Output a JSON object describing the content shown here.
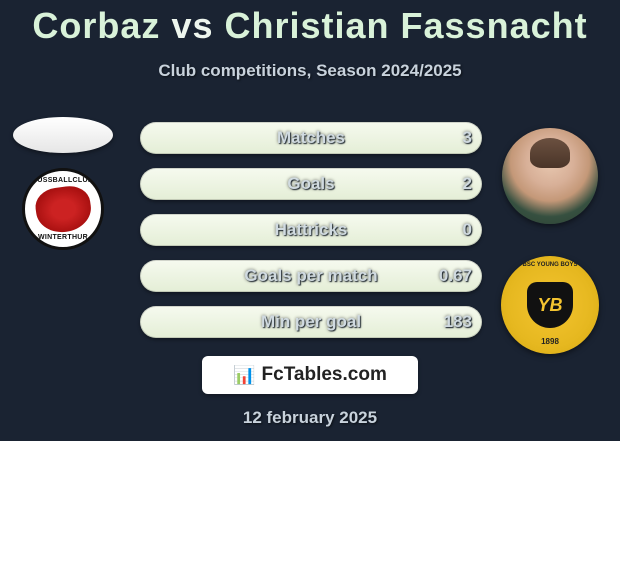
{
  "title": {
    "player_a": "Corbaz",
    "vs": "vs",
    "player_b": "Christian Fassnacht",
    "color_a": "#d9f2d9",
    "color_b": "#d9f2d9",
    "color_vs": "#b8e4b8",
    "fontsize": 36
  },
  "subtitle": "Club competitions, Season 2024/2025",
  "left_team_name": "Winterthur",
  "right_team_name": "Young Boys",
  "stats": {
    "rows": [
      {
        "label": "Matches",
        "value": "3"
      },
      {
        "label": "Goals",
        "value": "2"
      },
      {
        "label": "Hattricks",
        "value": "0"
      },
      {
        "label": "Goals per match",
        "value": "0.67"
      },
      {
        "label": "Min per goal",
        "value": "183"
      }
    ],
    "pill_bg_top": "#f6faef",
    "pill_bg_bottom": "#e4eed6",
    "pill_height": 32,
    "label_fontsize": 17,
    "label_color": "#d0dae0",
    "value_fontsize": 17,
    "value_color": "#cfd9df"
  },
  "brand": {
    "icon": "📊",
    "text": "FcTables.com"
  },
  "date": "12 february 2025",
  "background": {
    "top_color": "#1a2332",
    "bottom_color": "#ffffff",
    "split_pct": 76
  }
}
